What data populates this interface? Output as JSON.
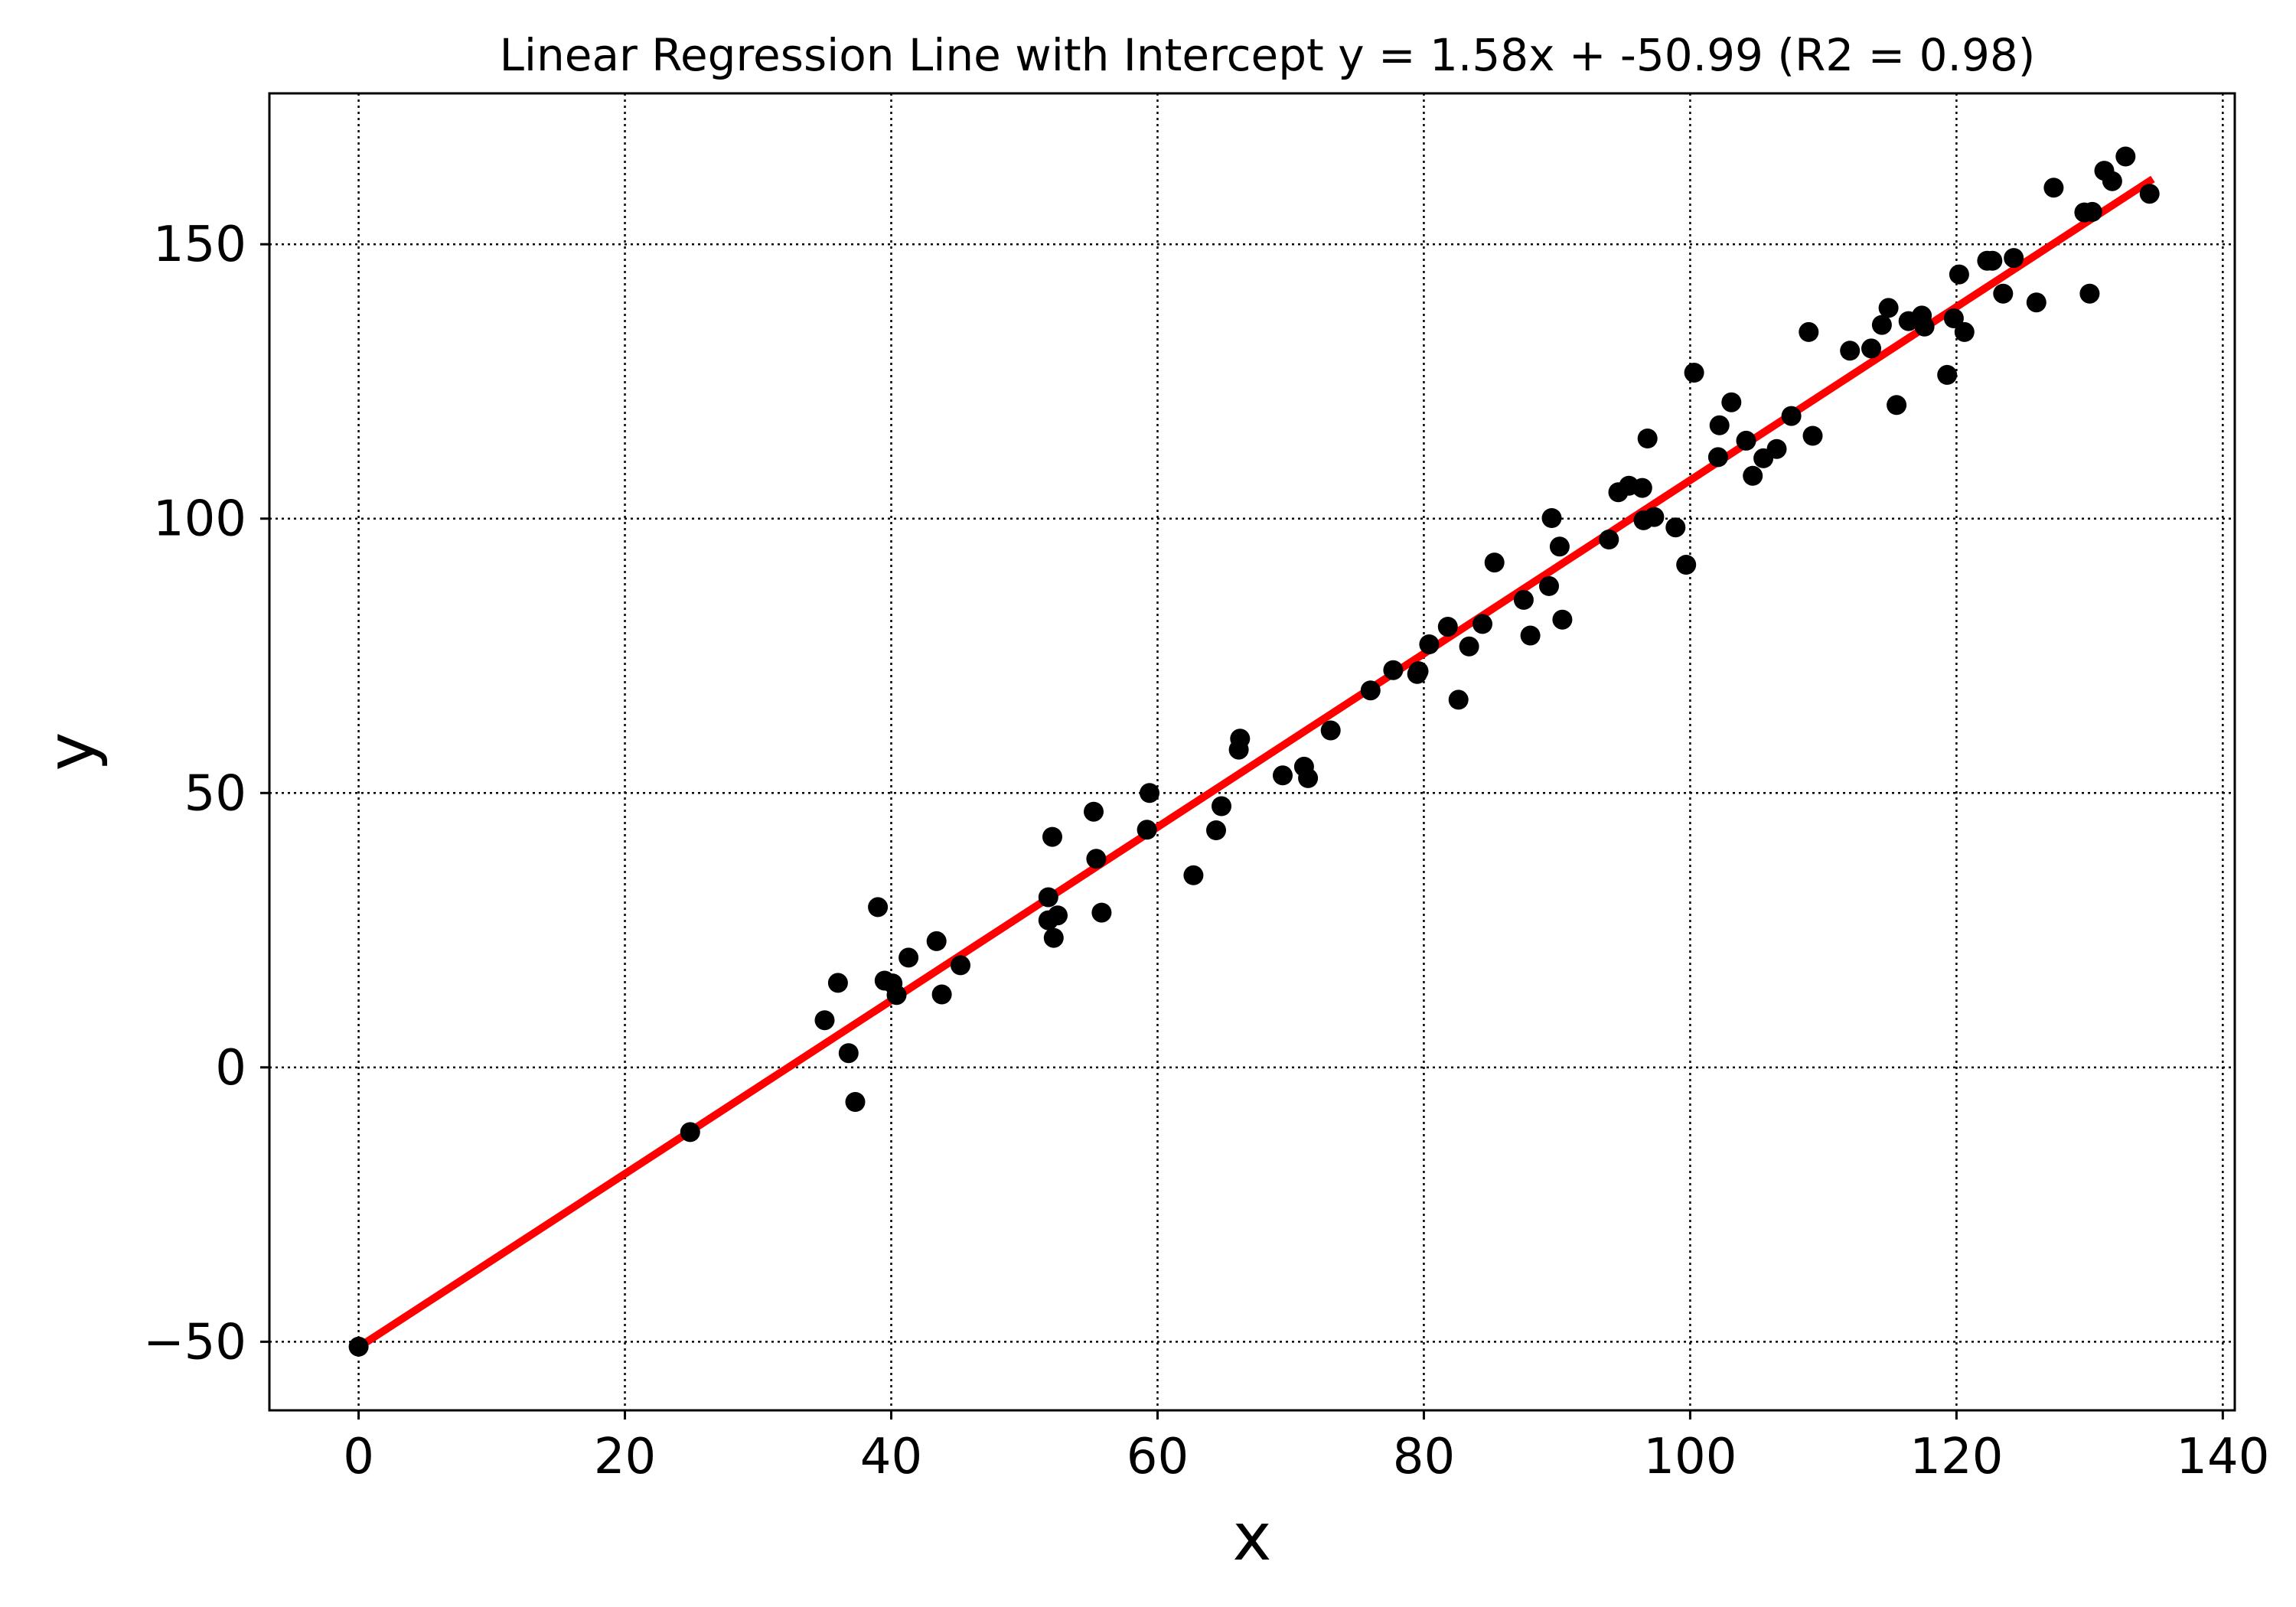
{
  "chart_data": {
    "type": "scatter",
    "title": "Linear Regression Line with Intercept y = 1.58x + -50.99 (R2 = 0.98)",
    "xlabel": "x",
    "ylabel": "y",
    "xlim": [
      -6.7,
      140.9
    ],
    "ylim": [
      -62.5,
      177.5
    ],
    "xticks": [
      0,
      20,
      40,
      60,
      80,
      100,
      120,
      140
    ],
    "xtick_labels": [
      "0",
      "20",
      "40",
      "60",
      "80",
      "100",
      "120",
      "140"
    ],
    "yticks": [
      -50,
      0,
      50,
      100,
      150
    ],
    "ytick_labels": [
      "−50",
      "0",
      "50",
      "100",
      "150"
    ],
    "grid": true,
    "series": [
      {
        "kind": "points",
        "color": "#000000",
        "points": [
          [
            0,
            -50.9
          ],
          [
            24.9,
            -11.8
          ],
          [
            35,
            8.6
          ],
          [
            36,
            15.4
          ],
          [
            36.8,
            2.6
          ],
          [
            37.3,
            -6.3
          ],
          [
            39,
            29.2
          ],
          [
            39.5,
            15.8
          ],
          [
            40.1,
            15.3
          ],
          [
            40.4,
            13.2
          ],
          [
            41.3,
            20
          ],
          [
            43.4,
            23
          ],
          [
            43.8,
            13.3
          ],
          [
            45.2,
            18.6
          ],
          [
            51.8,
            31
          ],
          [
            51.8,
            26.8
          ],
          [
            52.1,
            42
          ],
          [
            52.2,
            23.6
          ],
          [
            52.5,
            27.7
          ],
          [
            55.2,
            46.6
          ],
          [
            55.4,
            38
          ],
          [
            55.8,
            28.2
          ],
          [
            59.2,
            43.3
          ],
          [
            59.4,
            50
          ],
          [
            62.7,
            35
          ],
          [
            64.4,
            43.2
          ],
          [
            64.8,
            47.6
          ],
          [
            66.1,
            57.9
          ],
          [
            66.2,
            59.9
          ],
          [
            69.4,
            53.2
          ],
          [
            71,
            54.8
          ],
          [
            71.3,
            52.7
          ],
          [
            73,
            61.4
          ],
          [
            76,
            68.7
          ],
          [
            77.7,
            72.4
          ],
          [
            79.5,
            71.7
          ],
          [
            79.6,
            72.2
          ],
          [
            80.4,
            77.1
          ],
          [
            81.8,
            80.3
          ],
          [
            82.6,
            67
          ],
          [
            83.4,
            76.7
          ],
          [
            84.4,
            80.8
          ],
          [
            85.3,
            92
          ],
          [
            87.5,
            85.2
          ],
          [
            88,
            78.7
          ],
          [
            89.4,
            87.7
          ],
          [
            89.6,
            100.1
          ],
          [
            90.2,
            94.9
          ],
          [
            90.4,
            81.6
          ],
          [
            93.9,
            96.2
          ],
          [
            94.6,
            104.8
          ],
          [
            95.4,
            106
          ],
          [
            96.4,
            105.6
          ],
          [
            96.5,
            99.7
          ],
          [
            96.8,
            114.6
          ],
          [
            97.3,
            100.3
          ],
          [
            98.9,
            98.4
          ],
          [
            99.7,
            91.6
          ],
          [
            100.3,
            126.6
          ],
          [
            102.1,
            111.2
          ],
          [
            102.2,
            117
          ],
          [
            103.1,
            121.2
          ],
          [
            104.2,
            114.2
          ],
          [
            104.7,
            107.8
          ],
          [
            105.5,
            111
          ],
          [
            106.5,
            112.7
          ],
          [
            107.6,
            118.7
          ],
          [
            108.9,
            134
          ],
          [
            109.2,
            115.1
          ],
          [
            112,
            130.6
          ],
          [
            113.6,
            131
          ],
          [
            114.4,
            135.3
          ],
          [
            114.9,
            138.4
          ],
          [
            115.5,
            120.7
          ],
          [
            116.4,
            136
          ],
          [
            117.4,
            137
          ],
          [
            117.6,
            135
          ],
          [
            119.3,
            126.2
          ],
          [
            119.8,
            136.5
          ],
          [
            120.2,
            144.5
          ],
          [
            120.6,
            134
          ],
          [
            122.3,
            147
          ],
          [
            122.7,
            147
          ],
          [
            123.5,
            141
          ],
          [
            124.3,
            147.5
          ],
          [
            126,
            139.4
          ],
          [
            127.3,
            160.3
          ],
          [
            129.6,
            155.8
          ],
          [
            130,
            141
          ],
          [
            130.2,
            155.9
          ],
          [
            131.1,
            163.4
          ],
          [
            131.7,
            161.5
          ],
          [
            132.7,
            166
          ],
          [
            134.5,
            159.2
          ]
        ]
      },
      {
        "kind": "line",
        "color": "#ff0000",
        "points": [
          [
            0,
            -50.99
          ],
          [
            134.5,
            161.5
          ]
        ]
      }
    ]
  }
}
